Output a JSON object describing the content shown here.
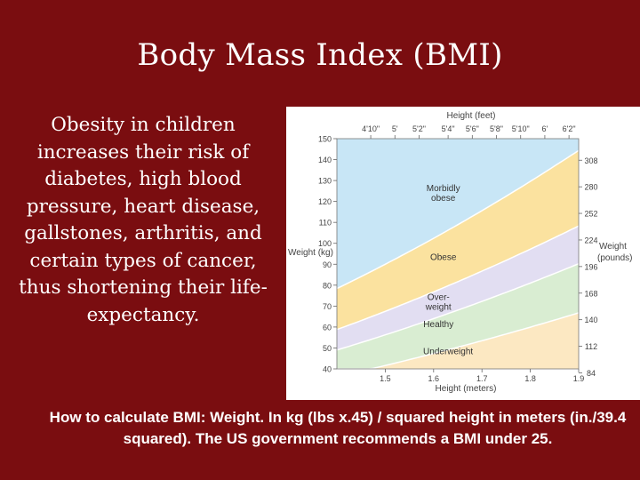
{
  "slide": {
    "title": "Body Mass Index (BMI)",
    "body_text": "Obesity in children increases their risk of diabetes, high blood pressure, heart disease, gallstones, arthritis, and certain types of cancer, thus shortening their life-expectancy.",
    "caption": "How to calculate BMI: Weight. In kg (lbs x.45) / squared height in meters (in./39.4 squared).  The US government recommends a BMI under 25."
  },
  "colors": {
    "background": "#7a0d10",
    "morbidly_obese": "#c8e6f6",
    "obese": "#fbe29f",
    "overweight": "#e2def2",
    "healthy": "#d9edd2",
    "underweight": "#fce8c2"
  },
  "chart_data": {
    "type": "area",
    "title_top": "Height (feet)",
    "xlabel": "Height (meters)",
    "ylabel_left": "Weight (kg)",
    "ylabel_right": "Weight (pounds)",
    "xlim": [
      1.4,
      1.9
    ],
    "ylim": [
      40,
      150
    ],
    "x_ticks": [
      1.5,
      1.6,
      1.7,
      1.8,
      1.9
    ],
    "x_tick_labels": [
      "1.5",
      "1.6",
      "1.7",
      "1.8",
      "1.9"
    ],
    "top_ticks": [
      1.47,
      1.52,
      1.57,
      1.63,
      1.68,
      1.73,
      1.78,
      1.83,
      1.88
    ],
    "top_tick_labels": [
      "4'10\"",
      "5'",
      "5'2\"",
      "5'4\"",
      "5'6\"",
      "5'8\"",
      "5'10\"",
      "6'",
      "6'2\""
    ],
    "y_ticks": [
      40,
      50,
      60,
      70,
      80,
      90,
      100,
      110,
      120,
      130,
      140,
      150
    ],
    "y_tick_labels": [
      "40",
      "50",
      "60",
      "70",
      "80",
      "90",
      "100",
      "110",
      "120",
      "130",
      "140",
      "150"
    ],
    "right_ticks": [
      38.1,
      50.8,
      63.5,
      76.2,
      88.9,
      101.6,
      114.3,
      127.0,
      139.7
    ],
    "right_tick_labels": [
      "84",
      "112",
      "140",
      "168",
      "196",
      "224",
      "252",
      "280",
      "308"
    ],
    "bmi_boundaries": [
      18.5,
      25,
      30,
      40
    ],
    "categories": [
      {
        "label": "Morbidly obese",
        "lines": [
          "Morbidly",
          "obese"
        ],
        "color": "#c8e6f6",
        "lo": 40,
        "hi": null,
        "label_x": 1.62,
        "label_y": 125
      },
      {
        "label": "Obese",
        "lines": [
          "Obese"
        ],
        "color": "#fbe29f",
        "lo": 30,
        "hi": 40,
        "label_x": 1.62,
        "label_y": 92
      },
      {
        "label": "Over-weight",
        "lines": [
          "Over-",
          "weight"
        ],
        "color": "#e2def2",
        "lo": 25,
        "hi": 30,
        "label_x": 1.61,
        "label_y": 73
      },
      {
        "label": "Healthy",
        "lines": [
          "Healthy"
        ],
        "color": "#d9edd2",
        "lo": 18.5,
        "hi": 25,
        "label_x": 1.61,
        "label_y": 60
      },
      {
        "label": "Underweight",
        "lines": [
          "Underweight"
        ],
        "color": "#fce8c2",
        "lo": null,
        "hi": 18.5,
        "label_x": 1.63,
        "label_y": 47
      }
    ]
  }
}
